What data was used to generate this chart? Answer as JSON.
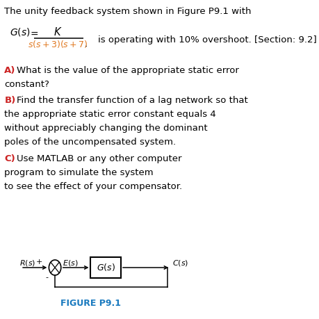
{
  "bg_color": "#ffffff",
  "intro_text": "The unity feedback system shown in Figure P9.1 with",
  "section_text": "is operating with 10% overshoot. [Section: 9.2]",
  "part_A_label": "A)",
  "part_A_text1": "What is the value of the appropriate static error",
  "part_A_text2": "constant?",
  "part_B_label": "B)",
  "part_B_text1": "Find the transfer function of a lag network so that",
  "part_B_text2": "the appropriate static error constant equals 4",
  "part_B_text3": "without appreciably changing the dominant",
  "part_B_text4": "poles of the uncompensated system.",
  "part_C_label": "C)",
  "part_C_text1": "Use MATLAB or any other computer",
  "part_C_text2": "program to simulate the system",
  "part_C_text3": "to see the effect of your compensator.",
  "figure_label": "FIGURE P9.1",
  "label_color": "#cc2222",
  "figure_label_color": "#1a7abf",
  "text_color": "#000000",
  "denom_color": "#e07820",
  "font_size": 9.5,
  "label_font_size": 9.5
}
